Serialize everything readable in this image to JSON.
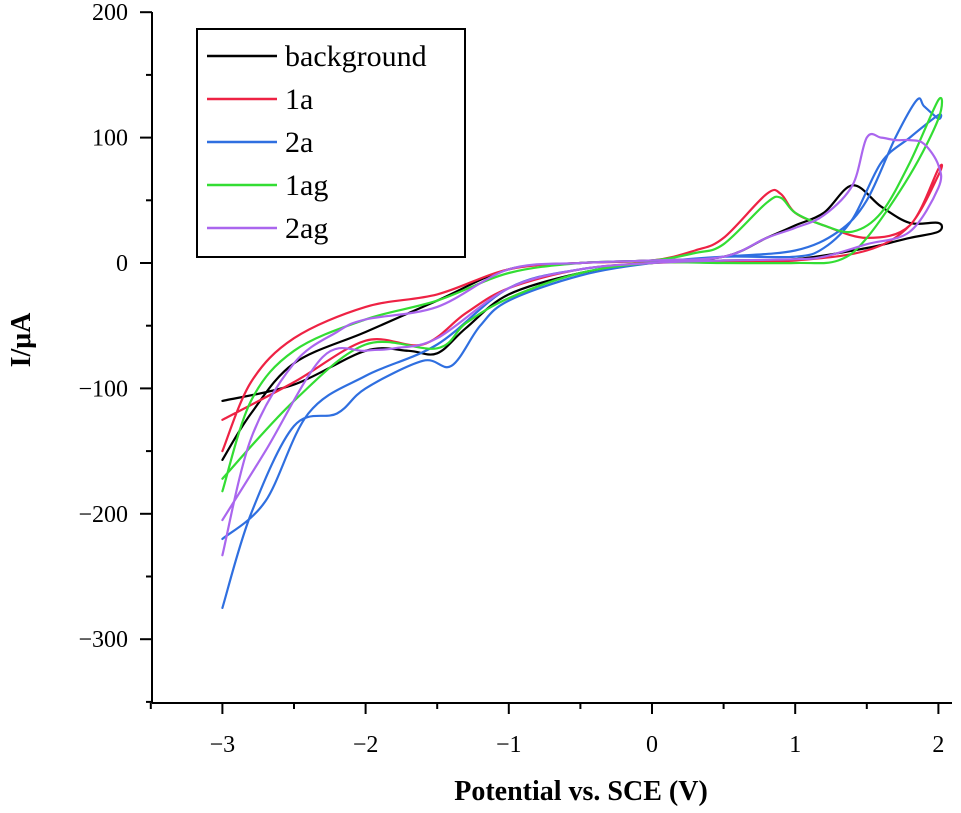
{
  "chart_data": {
    "type": "line",
    "title": "",
    "xlabel": "Potential vs. SCE (V)",
    "ylabel": "I/μA",
    "xlim": [
      -3.5,
      2.1
    ],
    "ylim": [
      -350,
      200
    ],
    "x_ticks": [
      -3,
      -2,
      -1,
      0,
      1,
      2
    ],
    "x_tick_labels": [
      "−3",
      "−2",
      "−1",
      "0",
      "1",
      "2"
    ],
    "y_ticks": [
      -300,
      -200,
      -100,
      0,
      100,
      200
    ],
    "y_tick_labels": [
      "−300",
      "−200",
      "−100",
      "0",
      "100",
      "200"
    ],
    "grid": false,
    "legend_position": "top-left",
    "series": [
      {
        "name": "background",
        "color": "#000000",
        "x": [
          -3,
          -2.8,
          -2.5,
          -2.0,
          -1.5,
          -1.0,
          -0.5,
          0,
          0.5,
          0.8,
          1.0,
          1.2,
          1.4,
          1.6,
          1.8,
          2.0,
          2.0,
          1.8,
          1.5,
          1.0,
          0.5,
          0,
          -0.5,
          -1.0,
          -1.3,
          -1.5,
          -1.7,
          -2.0,
          -2.5,
          -3.0
        ],
        "y": [
          -157,
          -120,
          -80,
          -55,
          -30,
          -5,
          0,
          2,
          5,
          20,
          30,
          40,
          62,
          45,
          32,
          32,
          25,
          20,
          12,
          3,
          2,
          0,
          -8,
          -25,
          -52,
          -72,
          -70,
          -70,
          -97,
          -110
        ]
      },
      {
        "name": "1a",
        "color": "#ee2244",
        "x": [
          -3,
          -2.8,
          -2.5,
          -2.0,
          -1.5,
          -1.0,
          -0.5,
          0,
          0.3,
          0.5,
          0.8,
          0.9,
          1.0,
          1.2,
          1.5,
          1.8,
          2.0,
          2.0,
          1.8,
          1.5,
          1.0,
          0.5,
          0,
          -0.5,
          -1.0,
          -1.3,
          -1.6,
          -2.0,
          -2.5,
          -3.0
        ],
        "y": [
          -150,
          -95,
          -60,
          -35,
          -25,
          -5,
          0,
          2,
          10,
          20,
          55,
          55,
          40,
          30,
          20,
          30,
          75,
          70,
          30,
          10,
          2,
          1,
          0,
          -5,
          -20,
          -40,
          -65,
          -62,
          -95,
          -125
        ]
      },
      {
        "name": "2a",
        "color": "#2f6fe0",
        "x": [
          -3,
          -2.8,
          -2.5,
          -2.2,
          -2.0,
          -1.6,
          -1.4,
          -1.2,
          -1.0,
          -0.5,
          0,
          0.5,
          1.0,
          1.2,
          1.4,
          1.6,
          1.8,
          2.0,
          2.0,
          1.9,
          1.85,
          1.7,
          1.5,
          1.3,
          1.0,
          0.5,
          0,
          -0.5,
          -1.0,
          -1.5,
          -2.0,
          -2.4,
          -2.7,
          -3.0
        ],
        "y": [
          -275,
          -200,
          -130,
          -120,
          -100,
          -78,
          -82,
          -50,
          -30,
          -10,
          0,
          5,
          5,
          12,
          35,
          80,
          100,
          118,
          115,
          125,
          130,
          100,
          50,
          25,
          10,
          5,
          0,
          -5,
          -20,
          -65,
          -90,
          -120,
          -190,
          -220
        ]
      },
      {
        "name": "1ag",
        "color": "#33dd33",
        "x": [
          -3,
          -2.8,
          -2.5,
          -2.0,
          -1.5,
          -1.0,
          -0.5,
          0,
          0.3,
          0.5,
          0.8,
          0.9,
          1.0,
          1.2,
          1.4,
          1.6,
          1.8,
          2.0,
          2.0,
          1.8,
          1.5,
          1.3,
          1.0,
          0.5,
          0,
          -0.5,
          -1.0,
          -1.3,
          -1.5,
          -2.0,
          -2.5,
          -3.0
        ],
        "y": [
          -182,
          -110,
          -70,
          -45,
          -30,
          -8,
          0,
          2,
          8,
          15,
          48,
          52,
          40,
          30,
          25,
          40,
          80,
          130,
          115,
          70,
          20,
          2,
          0,
          0,
          0,
          -8,
          -28,
          -48,
          -68,
          -65,
          -110,
          -172
        ]
      },
      {
        "name": "2ag",
        "color": "#aa66ee",
        "x": [
          -3,
          -2.8,
          -2.5,
          -2.2,
          -2.0,
          -1.5,
          -1.0,
          -0.5,
          0,
          0.5,
          0.8,
          1.0,
          1.2,
          1.4,
          1.5,
          1.6,
          1.7,
          1.8,
          1.9,
          2.0,
          2.0,
          1.8,
          1.5,
          1.2,
          1.0,
          0.5,
          0,
          -0.5,
          -1.0,
          -1.5,
          -1.8,
          -2.0,
          -2.3,
          -2.7,
          -3.0
        ],
        "y": [
          -233,
          -140,
          -80,
          -55,
          -45,
          -35,
          -5,
          0,
          2,
          5,
          20,
          28,
          38,
          62,
          100,
          100,
          98,
          98,
          95,
          78,
          60,
          25,
          15,
          5,
          3,
          2,
          0,
          -5,
          -20,
          -60,
          -68,
          -70,
          -75,
          -150,
          -205
        ]
      }
    ]
  }
}
